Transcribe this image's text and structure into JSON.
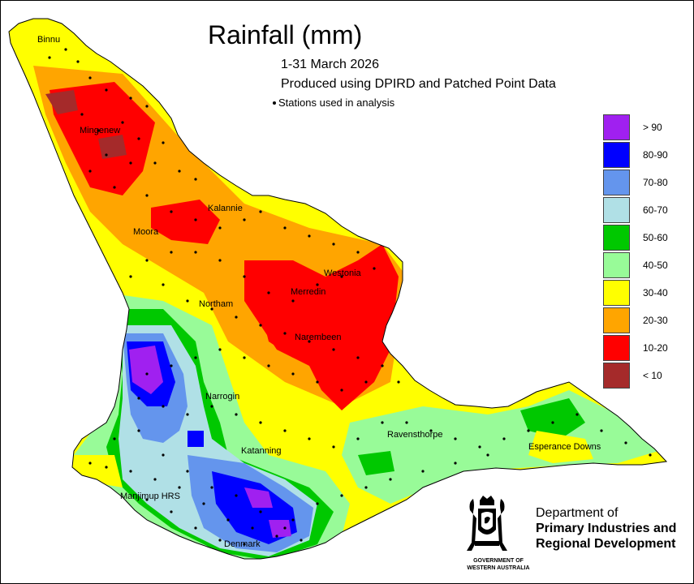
{
  "title": "Rainfall (mm)",
  "subtitle_period": "1-31 March 2026",
  "subtitle_source": "Produced using DPIRD and Patched Point Data",
  "stations_legend": "Stations used in analysis",
  "legend": [
    {
      "label": "> 90",
      "color": "#A020F0"
    },
    {
      "label": "80-90",
      "color": "#0000FF"
    },
    {
      "label": "70-80",
      "color": "#6495ED"
    },
    {
      "label": "60-70",
      "color": "#B0E0E6"
    },
    {
      "label": "50-60",
      "color": "#00C800"
    },
    {
      "label": "40-50",
      "color": "#98FB98"
    },
    {
      "label": "30-40",
      "color": "#FFFF00"
    },
    {
      "label": "20-30",
      "color": "#FFA500"
    },
    {
      "label": "10-20",
      "color": "#FF0000"
    },
    {
      "label": "< 10",
      "color": "#A52A2A"
    }
  ],
  "towns": [
    "Binnu",
    "Mingenew",
    "Kalannie",
    "Moora",
    "Westonia",
    "Merredin",
    "Northam",
    "Narembeen",
    "Narrogin",
    "Ravensthorpe",
    "Katanning",
    "Esperance Downs",
    "Manjimup HRS",
    "Denmark"
  ],
  "org": {
    "line1": "Department of",
    "line2": "Primary Industries and",
    "line3": "Regional Development",
    "gov1": "GOVERNMENT OF",
    "gov2": "WESTERN AUSTRALIA"
  }
}
